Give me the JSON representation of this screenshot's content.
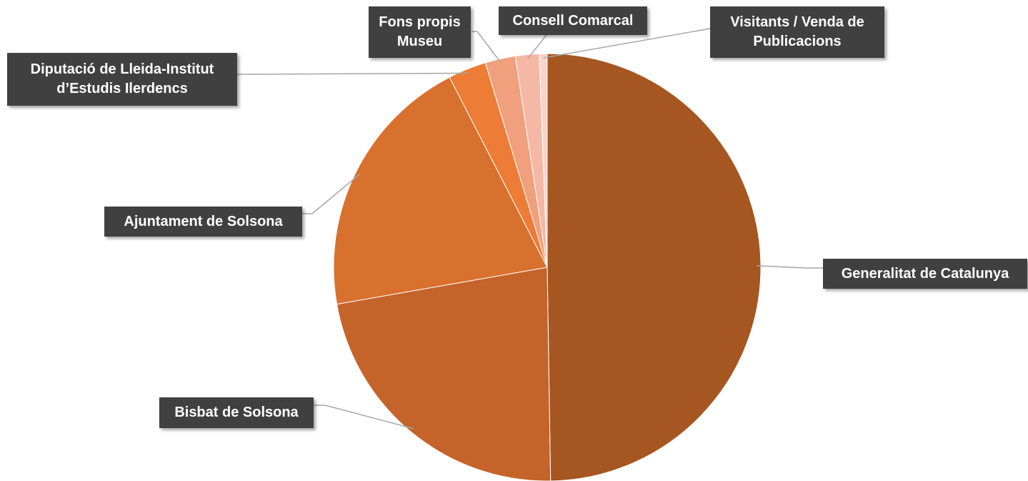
{
  "chart_data": {
    "type": "pie",
    "title": "",
    "slices": [
      {
        "label": "Generalitat de Catalunya",
        "value": 50.0,
        "color": "#A65620"
      },
      {
        "label": "Bisbat de Solsona",
        "value": 22.6,
        "color": "#C4642A"
      },
      {
        "label": "Ajuntament de Solsona",
        "value": 20.3,
        "color": "#D8702E"
      },
      {
        "label": "Diputació de Lleida-Institut d’Estudis Ilerdencs",
        "value": 2.9,
        "color": "#EC7C36"
      },
      {
        "label": "Fons propis Museu",
        "value": 2.3,
        "color": "#F0A07C"
      },
      {
        "label": "Consell Comarcal",
        "value": 1.8,
        "color": "#F4B8A4"
      },
      {
        "label": "Visitants / Venda de Publicacions",
        "value": 0.6,
        "color": "#F8D4CC"
      }
    ],
    "start_angle": "12 o'clock",
    "direction": "clockwise",
    "legend": "none",
    "label_style": "callout"
  }
}
